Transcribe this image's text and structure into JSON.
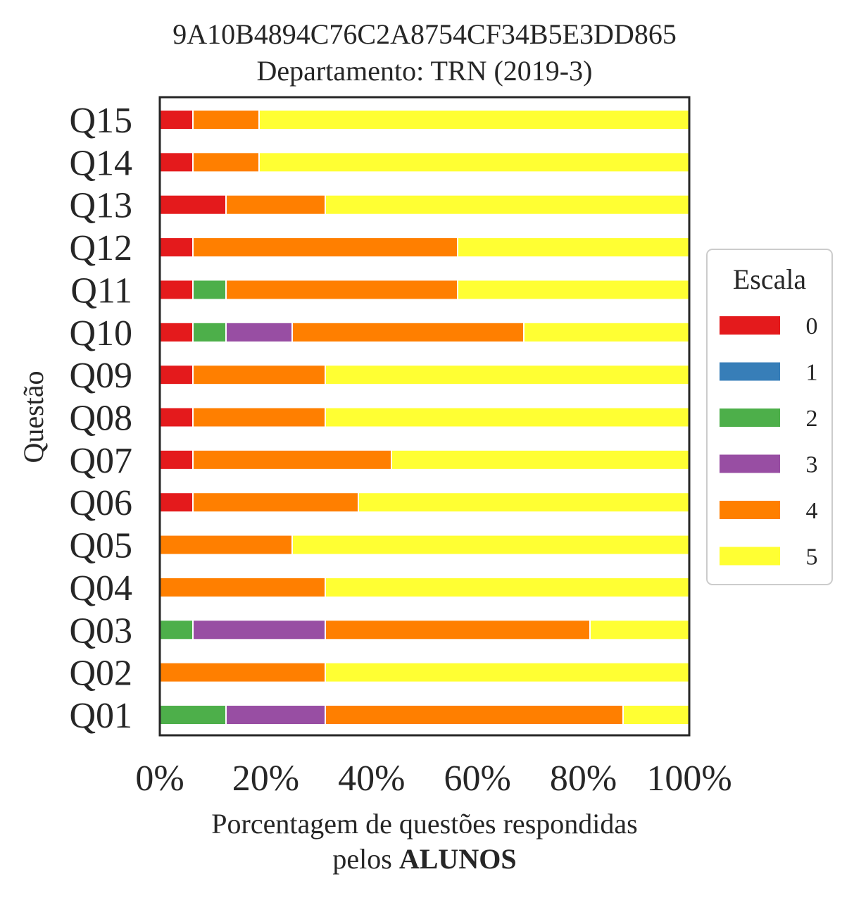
{
  "chart_data": {
    "type": "bar",
    "orientation": "horizontal",
    "stacked": true,
    "title": "9A10B4894C76C2A8754CF34B5E3DD865",
    "subtitle": "Departamento: TRN (2019-3)",
    "ylabel": "Questão",
    "xlabel_line1": "Porcentagem de questões respondidas",
    "xlabel_line2_prefix": "pelos ",
    "xlabel_line2_bold": "ALUNOS",
    "xlim": [
      0,
      100
    ],
    "xticks": [
      "0%",
      "20%",
      "40%",
      "60%",
      "80%",
      "100%"
    ],
    "grid": false,
    "legend_position": "right",
    "legend_title": "Escala",
    "categories": [
      "Q01",
      "Q02",
      "Q03",
      "Q04",
      "Q05",
      "Q06",
      "Q07",
      "Q08",
      "Q09",
      "Q10",
      "Q11",
      "Q12",
      "Q13",
      "Q14",
      "Q15"
    ],
    "series": [
      {
        "name": "0",
        "color": "#e41a1c",
        "values": [
          0,
          0,
          0,
          0,
          0,
          6.25,
          6.25,
          6.25,
          6.25,
          6.25,
          6.25,
          6.25,
          12.5,
          6.25,
          6.25
        ]
      },
      {
        "name": "1",
        "color": "#377eb8",
        "values": [
          0,
          0,
          0,
          0,
          0,
          0,
          0,
          0,
          0,
          0,
          0,
          0,
          0,
          0,
          0
        ]
      },
      {
        "name": "2",
        "color": "#4daf4a",
        "values": [
          12.5,
          0,
          6.25,
          0,
          0,
          0,
          0,
          0,
          0,
          6.25,
          6.25,
          0,
          0,
          0,
          0
        ]
      },
      {
        "name": "3",
        "color": "#984ea3",
        "values": [
          18.75,
          0,
          25,
          0,
          0,
          0,
          0,
          0,
          0,
          12.5,
          0,
          0,
          0,
          0,
          0
        ]
      },
      {
        "name": "4",
        "color": "#ff7f00",
        "values": [
          56.25,
          31.25,
          50,
          31.25,
          25,
          31.25,
          37.5,
          25,
          25,
          43.75,
          43.75,
          50,
          18.75,
          12.5,
          12.5
        ]
      },
      {
        "name": "5",
        "color": "#ffff33",
        "values": [
          12.5,
          68.75,
          18.75,
          68.75,
          75,
          62.5,
          56.25,
          68.75,
          68.75,
          31.25,
          43.75,
          43.75,
          68.75,
          81.25,
          81.25
        ]
      }
    ]
  }
}
